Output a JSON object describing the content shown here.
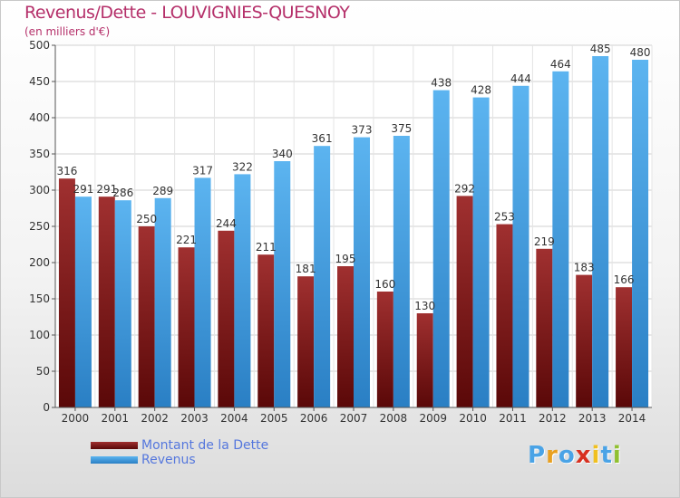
{
  "chart_data": {
    "type": "bar",
    "title": "Revenus/Dette - LOUVIGNIES-QUESNOY",
    "subtitle": "(en milliers d'€)",
    "xlabel": "",
    "ylabel": "",
    "ylim": [
      0,
      500
    ],
    "yticks": [
      "0",
      "50",
      "100",
      "150",
      "200",
      "250",
      "300",
      "350",
      "400",
      "450",
      "500"
    ],
    "grid": true,
    "legend_position": "bottom-left",
    "categories": [
      "2000",
      "2001",
      "2002",
      "2003",
      "2004",
      "2005",
      "2006",
      "2007",
      "2008",
      "2009",
      "2010",
      "2011",
      "2012",
      "2013",
      "2014"
    ],
    "series": [
      {
        "name": "Montant de la Dette",
        "color": "#8b1a1a",
        "values": [
          316,
          291,
          250,
          221,
          244,
          211,
          181,
          195,
          160,
          130,
          292,
          253,
          219,
          183,
          166
        ]
      },
      {
        "name": "Revenus",
        "color": "#4aa3e6",
        "values": [
          291,
          286,
          289,
          317,
          322,
          340,
          361,
          373,
          375,
          438,
          428,
          444,
          464,
          485,
          480
        ]
      }
    ]
  },
  "logo": {
    "text": "Proxiti",
    "letters": [
      "P",
      "r",
      "o",
      "x",
      "i",
      "t",
      "i"
    ]
  }
}
